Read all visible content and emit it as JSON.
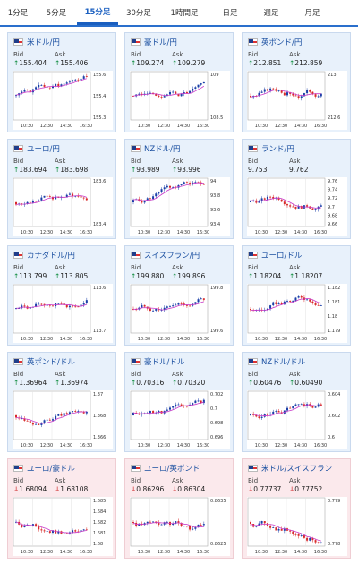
{
  "tabs": [
    {
      "label": "1分足"
    },
    {
      "label": "5分足"
    },
    {
      "label": "15分足",
      "active": true
    },
    {
      "label": "30分足"
    },
    {
      "label": "1時間足"
    },
    {
      "label": "日足"
    },
    {
      "label": "週足"
    },
    {
      "label": "月足"
    }
  ],
  "cards": [
    {
      "name": "米ドル/円",
      "bid": "155.404",
      "ask": "155.406",
      "dir": "up",
      "yticks": [
        "155.6",
        "155.4",
        "155.3"
      ],
      "xticks": [
        "10:30",
        "12:30",
        "14:30",
        "16:30"
      ]
    },
    {
      "name": "豪ドル/円",
      "bid": "109.274",
      "ask": "109.279",
      "dir": "up",
      "yticks": [
        "109",
        "108.5"
      ],
      "xticks": [
        "10:30",
        "12:30",
        "14:30",
        "16:30"
      ]
    },
    {
      "name": "英ポンド/円",
      "bid": "212.851",
      "ask": "212.859",
      "dir": "up",
      "yticks": [
        "213",
        "212.6"
      ],
      "xticks": [
        "10:30",
        "12:30",
        "14:30",
        "16:30"
      ]
    },
    {
      "name": "ユーロ/円",
      "bid": "183.694",
      "ask": "183.698",
      "dir": "up",
      "yticks": [
        "183.6",
        "183.4"
      ],
      "xticks": [
        "10:30",
        "12:30",
        "14:30",
        "16:30"
      ]
    },
    {
      "name": "NZドル/円",
      "bid": "93.989",
      "ask": "93.996",
      "dir": "up",
      "yticks": [
        "94",
        "93.8",
        "93.6",
        "93.4"
      ],
      "xticks": [
        "10:30",
        "12:30",
        "14:30",
        "16:30"
      ]
    },
    {
      "name": "ランド/円",
      "bid": "9.753",
      "ask": "9.762",
      "dir": "none",
      "yticks": [
        "9.76",
        "9.74",
        "9.72",
        "9.7",
        "9.68",
        "9.66"
      ],
      "xticks": [
        "10:30",
        "12:30",
        "14:30",
        "16:30"
      ]
    },
    {
      "name": "カナダドル/円",
      "bid": "113.799",
      "ask": "113.805",
      "dir": "up",
      "yticks": [
        "113.6",
        "113.7"
      ],
      "xticks": [
        "10:30",
        "12:30",
        "14:30",
        "16:30"
      ]
    },
    {
      "name": "スイスフラン/円",
      "bid": "199.880",
      "ask": "199.896",
      "dir": "up",
      "yticks": [
        "199.8",
        "199.6"
      ],
      "xticks": [
        "10:30",
        "12:30",
        "14:30",
        "16:30"
      ]
    },
    {
      "name": "ユーロ/ドル",
      "bid": "1.18204",
      "ask": "1.18207",
      "dir": "up",
      "yticks": [
        "1.182",
        "1.181",
        "1.18",
        "1.179"
      ],
      "xticks": [
        "10:30",
        "12:30",
        "14:30",
        "16:30"
      ]
    },
    {
      "name": "英ポンド/ドル",
      "bid": "1.36964",
      "ask": "1.36974",
      "dir": "up",
      "yticks": [
        "1.37",
        "1.368",
        "1.366"
      ],
      "xticks": [
        "10:30",
        "12:30",
        "14:30",
        "16:30"
      ]
    },
    {
      "name": "豪ドル/ドル",
      "bid": "0.70316",
      "ask": "0.70320",
      "dir": "up",
      "yticks": [
        "0.702",
        "0.7",
        "0.698",
        "0.696"
      ],
      "xticks": [
        "10:30",
        "12:30",
        "14:30",
        "16:30"
      ]
    },
    {
      "name": "NZドル/ドル",
      "bid": "0.60476",
      "ask": "0.60490",
      "dir": "up",
      "yticks": [
        "0.604",
        "0.602",
        "0.6"
      ],
      "xticks": [
        "10:30",
        "12:30",
        "14:30",
        "16:30"
      ]
    },
    {
      "name": "ユーロ/豪ドル",
      "bid": "1.68094",
      "ask": "1.68108",
      "dir": "down",
      "yticks": [
        "1.685",
        "1.684",
        "1.682",
        "1.681",
        "1.68"
      ],
      "xticks": [
        "10:30",
        "12:30",
        "14:30",
        "16:30"
      ]
    },
    {
      "name": "ユーロ/英ポンド",
      "bid": "0.86296",
      "ask": "0.86304",
      "dir": "down",
      "yticks": [
        "0.8635",
        "0.8625"
      ],
      "xticks": [
        "10:30",
        "12:30",
        "14:30",
        "16:30"
      ]
    },
    {
      "name": "米ドル/スイスフラン",
      "bid": "0.77737",
      "ask": "0.77752",
      "dir": "down",
      "yticks": [
        "0.779",
        "0.778"
      ],
      "xticks": [
        "10:30",
        "12:30",
        "14:30",
        "16:30"
      ]
    }
  ],
  "labels": {
    "bid": "Bid",
    "ask": "Ask"
  },
  "colors": {
    "up_bg": "#e8f1fb",
    "down_bg": "#fbe9ec",
    "candle_up": "#1a3fa8",
    "candle_down": "#d82a2a",
    "ma": "#c838c8"
  }
}
